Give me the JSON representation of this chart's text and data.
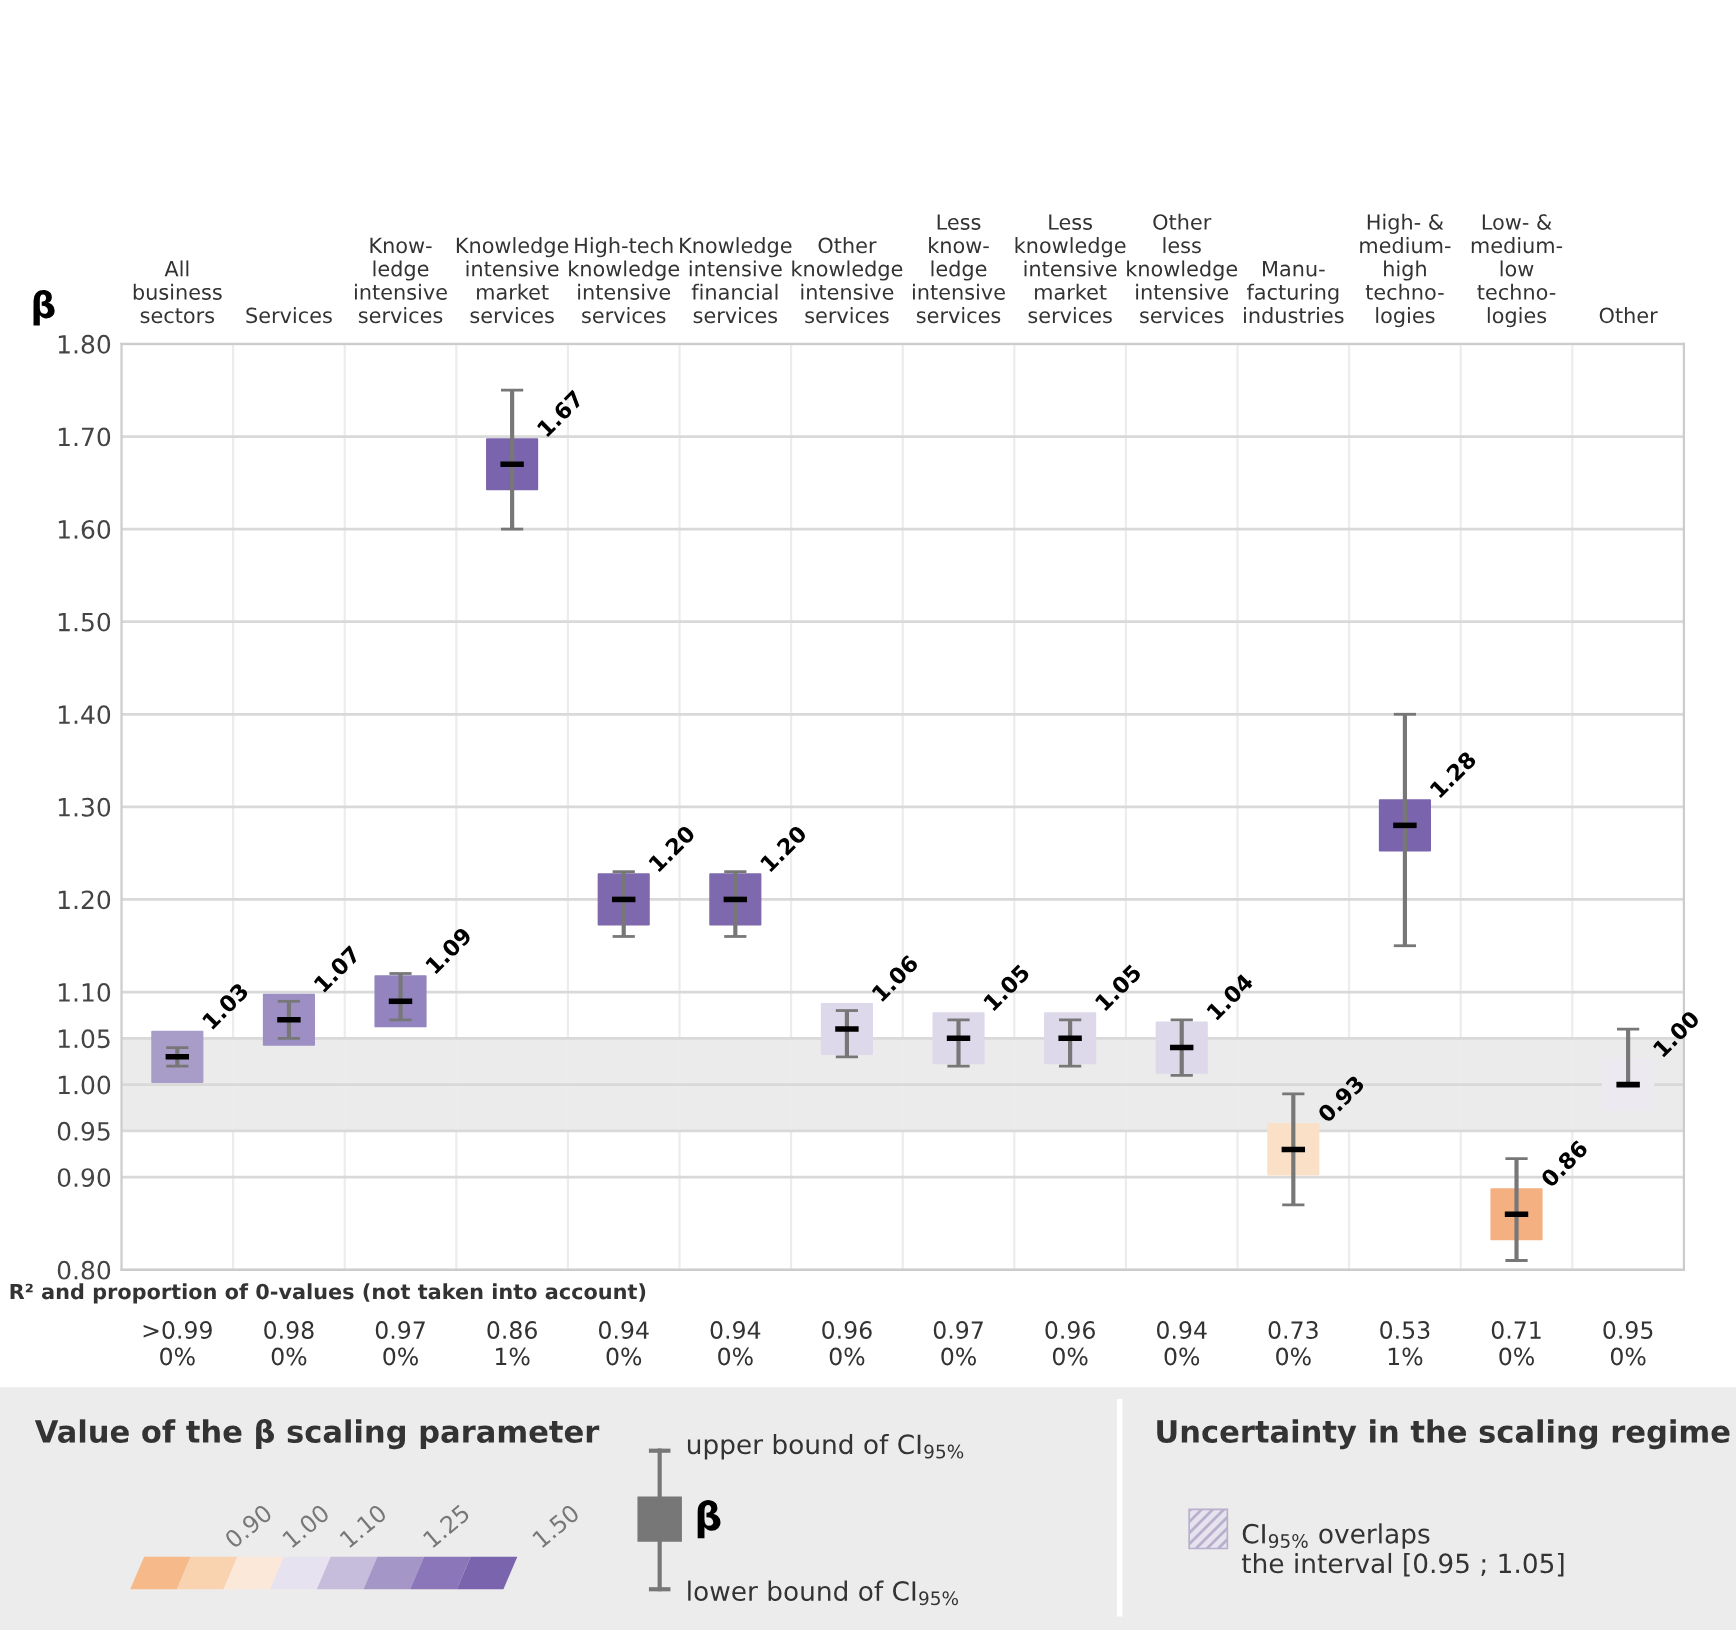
{
  "chart_data": {
    "type": "scatter",
    "ylabel": "β",
    "categories": [
      "All\nbusiness\nsectors",
      "Services",
      "Know-\nledge\nintensive\nservices",
      "Knowledge\nintensive\nmarket\nservices",
      "High-tech\nknowledge\nintensive\nservices",
      "Knowledge\nintensive\nfinancial\nservices",
      "Other\nknowledge\nintensive\nservices",
      "Less\nknow-\nledge\nintensive\nservices",
      "Less\nknowledge\nintensive\nmarket\nservices",
      "Other\nless\nknowledge\nintensive\nservices",
      "Manu-\nfacturing\nindustries",
      "High- &\nmedium-\nhigh\ntechno-\nlogies",
      "Low- &\nmedium-\nlow\ntechno-\nlogies",
      "Other"
    ],
    "values": [
      1.03,
      1.07,
      1.09,
      1.67,
      1.2,
      1.2,
      1.06,
      1.05,
      1.05,
      1.04,
      0.93,
      1.28,
      0.86,
      1.0
    ],
    "errors": [
      [
        1.02,
        1.04
      ],
      [
        1.05,
        1.09
      ],
      [
        1.07,
        1.12
      ],
      [
        1.6,
        1.75
      ],
      [
        1.16,
        1.23
      ],
      [
        1.16,
        1.23
      ],
      [
        1.03,
        1.08
      ],
      [
        1.02,
        1.07
      ],
      [
        1.02,
        1.07
      ],
      [
        1.01,
        1.07
      ],
      [
        0.87,
        0.99
      ],
      [
        1.15,
        1.4
      ],
      [
        0.81,
        0.92
      ],
      [
        1.0,
        1.06
      ]
    ],
    "colors": [
      "#a89cc8",
      "#9d8fc4",
      "#9384bf",
      "#7a64ad",
      "#7e69ae",
      "#7e69ae",
      "#ddd8ea",
      "#ddd8ea",
      "#ddd8ea",
      "#ddd8ea",
      "#fbe0c8",
      "#7a64ad",
      "#f4b080",
      "#ece9f1"
    ],
    "marker": "square",
    "value_labels": [
      "1.03",
      "1.07",
      "1.09",
      "1.67",
      "1.20",
      "1.20",
      "1.06",
      "1.05",
      "1.05",
      "1.04",
      "0.93",
      "1.28",
      "0.86",
      "1.00"
    ],
    "ylim": [
      0.8,
      1.8
    ],
    "yticks": [
      {
        "value": 0.8,
        "label": "0.80"
      },
      {
        "value": 0.9,
        "label": "0.90"
      },
      {
        "value": 0.95,
        "label": "0.95"
      },
      {
        "value": 1.0,
        "label": "1.00"
      },
      {
        "value": 1.05,
        "label": "1.05"
      },
      {
        "value": 1.1,
        "label": "1.10"
      },
      {
        "value": 1.2,
        "label": "1.20"
      },
      {
        "value": 1.3,
        "label": "1.30"
      },
      {
        "value": 1.4,
        "label": "1.40"
      },
      {
        "value": 1.5,
        "label": "1.50"
      },
      {
        "value": 1.6,
        "label": "1.60"
      },
      {
        "value": 1.7,
        "label": "1.70"
      },
      {
        "value": 1.8,
        "label": "1.80"
      }
    ],
    "bands": [
      {
        "axis": "y",
        "from": 0.95,
        "to": 1.05,
        "color": "#ebebeb"
      }
    ],
    "grid": true,
    "annotations": [
      "R² and proportion of 0-values (not taken into account)",
      ">0.99\n0%",
      "0.98\n0%",
      "0.97\n0%",
      "0.86\n1%",
      "0.94\n0%",
      "0.94\n0%",
      "0.96\n0%",
      "0.97\n0%",
      "0.96\n0%",
      "0.94\n0%",
      "0.73\n0%",
      "0.53\n1%",
      "0.71\n0%",
      "0.95\n0%",
      "Value of the β scaling parameter",
      "0.90",
      "1.00",
      "1.10",
      "1.25",
      "1.50",
      "upper bound of CI$_{95%}$",
      "β",
      "lower bound of CI$_{95%}$",
      "Uncertainty in the scaling regime",
      "CI$_{95%}$ overlaps\nthe interval [0.95 ; 1.05]"
    ]
  }
}
